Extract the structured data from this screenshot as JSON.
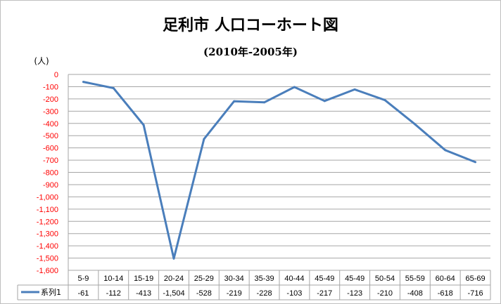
{
  "chart_data": {
    "type": "line",
    "title": "足利市 人口コーホート図",
    "subtitle": "(2010年-2005年)",
    "y_unit_label": "(人)",
    "categories": [
      "5-9",
      "10-14",
      "15-19",
      "20-24",
      "25-29",
      "30-34",
      "35-39",
      "40-44",
      "45-49",
      "45-49",
      "50-54",
      "55-59",
      "60-64",
      "65-69"
    ],
    "series": [
      {
        "name": "系列1",
        "color": "#4a7ebb",
        "values": [
          -61,
          -112,
          -413,
          -1504,
          -528,
          -219,
          -228,
          -103,
          -217,
          -123,
          -210,
          -408,
          -618,
          -716
        ]
      }
    ],
    "value_labels": [
      "-61",
      "-112",
      "-413",
      "-1,504",
      "-528",
      "-219",
      "-228",
      "-103",
      "-217",
      "-123",
      "-210",
      "-408",
      "-618",
      "-716"
    ],
    "y_ticks": [
      "0",
      "-100",
      "-200",
      "-300",
      "-400",
      "-500",
      "-600",
      "-700",
      "-800",
      "-900",
      "-1,000",
      "-1,100",
      "-1,200",
      "-1,300",
      "-1,400",
      "-1,500",
      "-1,600"
    ],
    "ylim": [
      -1600,
      0
    ],
    "ytick_color": "#ff0000",
    "grid": true,
    "legend": "data-table"
  }
}
